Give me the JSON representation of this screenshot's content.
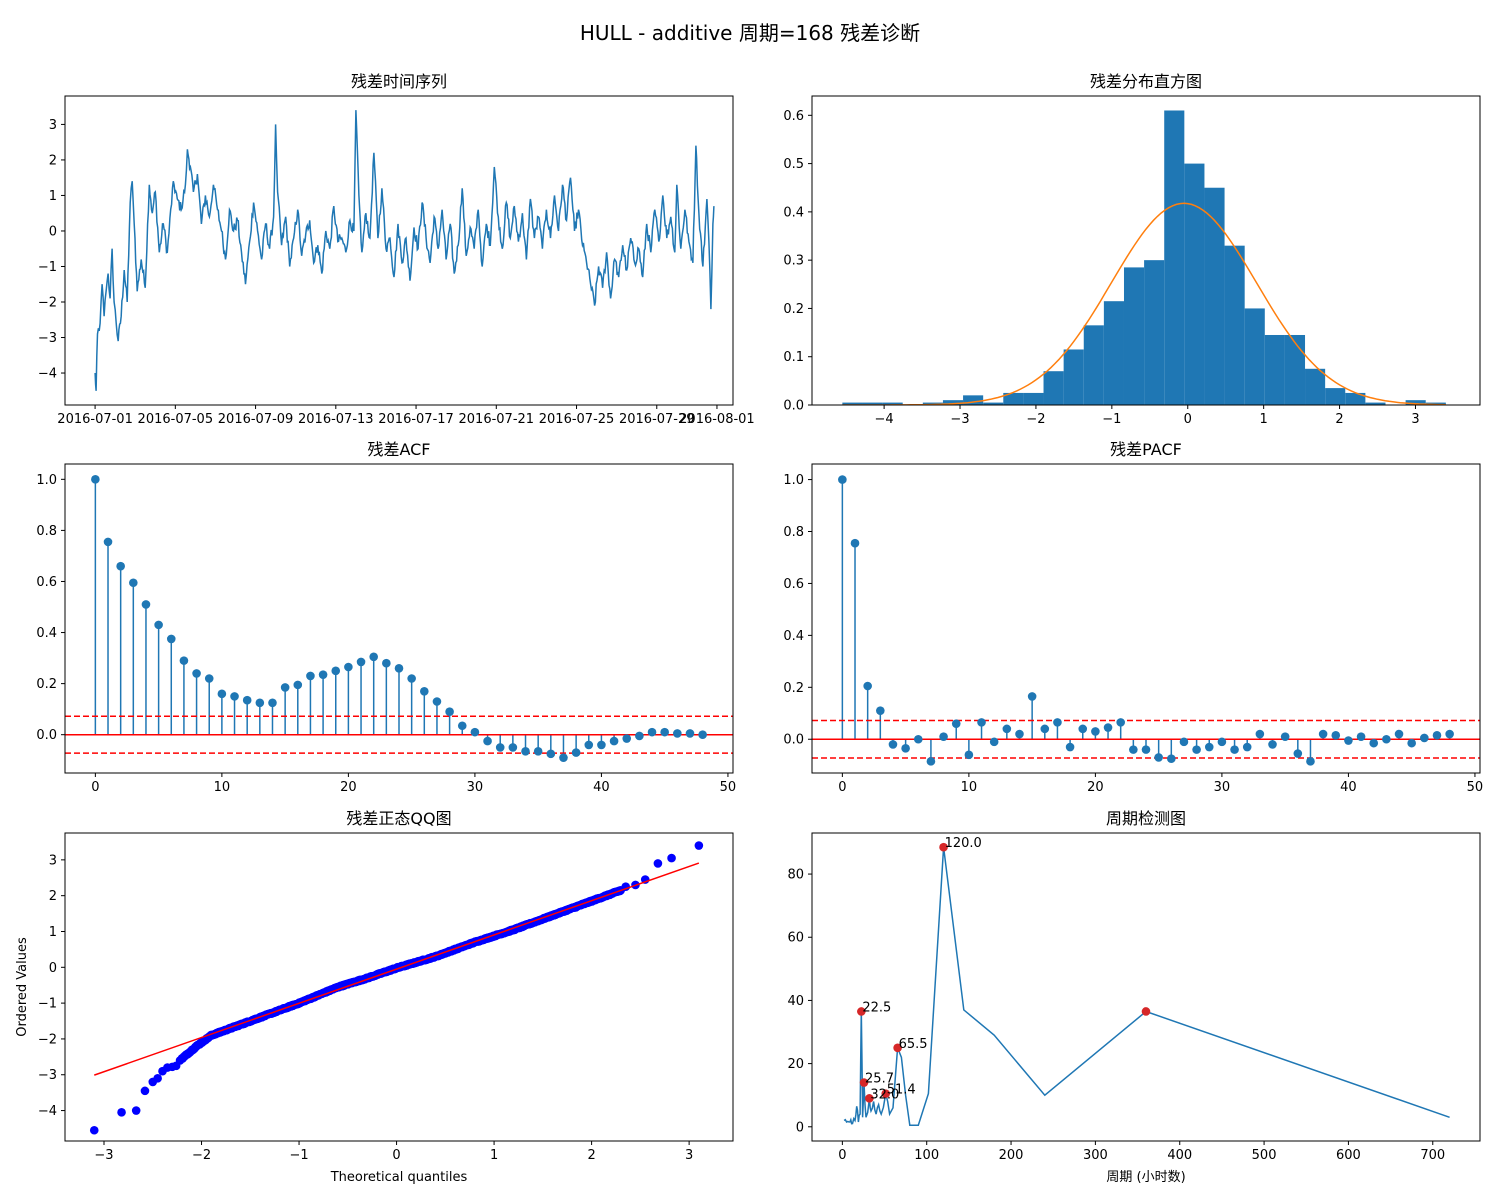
{
  "suptitle": "HULL - additive 周期=168 残差诊断",
  "colors": {
    "blue": "#1f77b4",
    "orange": "#ff7f0e",
    "red": "#ff0000",
    "qq_blue": "#0000ff",
    "peak_red": "#d62728"
  },
  "chart_data": [
    {
      "id": "resid_ts",
      "type": "line",
      "title": "残差时间序列",
      "xlabel": "",
      "ylabel": "",
      "xticks": [
        "2016-07-01",
        "2016-07-05",
        "2016-07-09",
        "2016-07-13",
        "2016-07-17",
        "2016-07-21",
        "2016-07-25",
        "2016-07-29",
        "2016-08-01"
      ],
      "yticks": [
        "−4",
        "−3",
        "−2",
        "−1",
        "0",
        "1",
        "2",
        "3"
      ],
      "xlim_days": [
        -1.5,
        31.8
      ],
      "ylim": [
        -4.9,
        3.8
      ],
      "x_start": "2016-07-01",
      "x_end": "2016-07-31",
      "anchors": [
        [
          0,
          -4.0
        ],
        [
          0.05,
          -4.5
        ],
        [
          0.12,
          -2.9
        ],
        [
          0.25,
          -2.6
        ],
        [
          0.35,
          -1.5
        ],
        [
          0.45,
          -2.4
        ],
        [
          0.55,
          -1.7
        ],
        [
          0.65,
          -1.2
        ],
        [
          0.75,
          -1.9
        ],
        [
          0.85,
          -0.5
        ],
        [
          0.95,
          -2.0
        ],
        [
          1.05,
          -2.6
        ],
        [
          1.15,
          -3.1
        ],
        [
          1.3,
          -2.4
        ],
        [
          1.45,
          -1.1
        ],
        [
          1.6,
          -2.0
        ],
        [
          1.75,
          0.8
        ],
        [
          1.85,
          1.4
        ],
        [
          1.95,
          0.2
        ],
        [
          2.1,
          -1.7
        ],
        [
          2.3,
          -0.8
        ],
        [
          2.5,
          -1.6
        ],
        [
          2.7,
          1.3
        ],
        [
          2.85,
          0.5
        ],
        [
          3.0,
          1.1
        ],
        [
          3.2,
          -0.6
        ],
        [
          3.4,
          0.2
        ],
        [
          3.6,
          -0.6
        ],
        [
          3.9,
          1.4
        ],
        [
          4.1,
          0.9
        ],
        [
          4.3,
          0.6
        ],
        [
          4.5,
          1.3
        ],
        [
          4.6,
          2.3
        ],
        [
          4.75,
          1.8
        ],
        [
          4.9,
          1.1
        ],
        [
          5.1,
          1.6
        ],
        [
          5.3,
          0.2
        ],
        [
          5.5,
          1.0
        ],
        [
          5.7,
          0.4
        ],
        [
          5.9,
          1.3
        ],
        [
          6.1,
          0.6
        ],
        [
          6.3,
          0.0
        ],
        [
          6.5,
          -0.8
        ],
        [
          6.7,
          0.6
        ],
        [
          6.9,
          0.0
        ],
        [
          7.1,
          0.3
        ],
        [
          7.3,
          -0.6
        ],
        [
          7.5,
          -1.5
        ],
        [
          7.7,
          -0.3
        ],
        [
          7.9,
          0.8
        ],
        [
          8.1,
          0.0
        ],
        [
          8.3,
          -0.8
        ],
        [
          8.5,
          0.2
        ],
        [
          8.7,
          -0.5
        ],
        [
          8.9,
          0.4
        ],
        [
          9.0,
          3.0
        ],
        [
          9.1,
          1.1
        ],
        [
          9.3,
          -0.4
        ],
        [
          9.5,
          0.4
        ],
        [
          9.7,
          -1.0
        ],
        [
          9.9,
          -0.2
        ],
        [
          10.1,
          0.6
        ],
        [
          10.3,
          -0.7
        ],
        [
          10.5,
          -0.1
        ],
        [
          10.7,
          0.3
        ],
        [
          10.9,
          -0.9
        ],
        [
          11.1,
          -0.4
        ],
        [
          11.3,
          -1.2
        ],
        [
          11.5,
          0.0
        ],
        [
          11.7,
          -0.5
        ],
        [
          11.9,
          0.7
        ],
        [
          12.1,
          -0.3
        ],
        [
          12.3,
          -0.2
        ],
        [
          12.5,
          -0.6
        ],
        [
          12.7,
          0.3
        ],
        [
          12.9,
          0.0
        ],
        [
          13.0,
          3.4
        ],
        [
          13.15,
          1.0
        ],
        [
          13.3,
          -0.6
        ],
        [
          13.5,
          0.5
        ],
        [
          13.7,
          -0.2
        ],
        [
          13.9,
          2.2
        ],
        [
          14.1,
          -0.2
        ],
        [
          14.3,
          1.2
        ],
        [
          14.5,
          -0.5
        ],
        [
          14.7,
          -0.2
        ],
        [
          14.9,
          -1.3
        ],
        [
          15.1,
          0.2
        ],
        [
          15.3,
          -0.9
        ],
        [
          15.5,
          -0.2
        ],
        [
          15.7,
          -1.4
        ],
        [
          15.9,
          0.1
        ],
        [
          16.1,
          -0.5
        ],
        [
          16.3,
          0.8
        ],
        [
          16.5,
          -0.2
        ],
        [
          16.7,
          -0.9
        ],
        [
          16.9,
          0.4
        ],
        [
          17.1,
          -0.5
        ],
        [
          17.3,
          0.6
        ],
        [
          17.5,
          -0.8
        ],
        [
          17.7,
          0.2
        ],
        [
          17.9,
          -1.2
        ],
        [
          18.1,
          -0.4
        ],
        [
          18.3,
          1.2
        ],
        [
          18.5,
          -0.7
        ],
        [
          18.7,
          0.1
        ],
        [
          18.9,
          -0.5
        ],
        [
          19.1,
          0.6
        ],
        [
          19.3,
          -1.0
        ],
        [
          19.5,
          0.2
        ],
        [
          19.7,
          -0.4
        ],
        [
          19.9,
          1.8
        ],
        [
          20.1,
          0.4
        ],
        [
          20.3,
          -0.5
        ],
        [
          20.5,
          0.8
        ],
        [
          20.7,
          -0.2
        ],
        [
          20.9,
          0.7
        ],
        [
          21.1,
          -0.3
        ],
        [
          21.3,
          0.5
        ],
        [
          21.5,
          -0.8
        ],
        [
          21.7,
          0.9
        ],
        [
          21.9,
          -0.2
        ],
        [
          22.1,
          0.4
        ],
        [
          22.3,
          -0.5
        ],
        [
          22.5,
          0.6
        ],
        [
          22.7,
          -0.2
        ],
        [
          22.9,
          1.0
        ],
        [
          23.1,
          0.0
        ],
        [
          23.3,
          1.3
        ],
        [
          23.5,
          0.3
        ],
        [
          23.7,
          1.5
        ],
        [
          23.9,
          0.0
        ],
        [
          24.1,
          0.6
        ],
        [
          24.3,
          -0.4
        ],
        [
          24.5,
          -0.9
        ],
        [
          24.7,
          -1.5
        ],
        [
          24.9,
          -2.1
        ],
        [
          25.1,
          -1.0
        ],
        [
          25.3,
          -1.6
        ],
        [
          25.5,
          -0.6
        ],
        [
          25.7,
          -1.9
        ],
        [
          25.9,
          -0.8
        ],
        [
          26.1,
          -1.3
        ],
        [
          26.3,
          -0.4
        ],
        [
          26.5,
          -1.1
        ],
        [
          26.7,
          -0.2
        ],
        [
          26.9,
          -0.9
        ],
        [
          27.1,
          -0.5
        ],
        [
          27.3,
          -1.3
        ],
        [
          27.5,
          0.2
        ],
        [
          27.7,
          -0.6
        ],
        [
          27.9,
          0.6
        ],
        [
          28.1,
          -0.3
        ],
        [
          28.3,
          1.0
        ],
        [
          28.5,
          -0.2
        ],
        [
          28.7,
          0.4
        ],
        [
          28.9,
          -0.6
        ],
        [
          29.0,
          1.3
        ],
        [
          29.2,
          -0.5
        ],
        [
          29.4,
          0.6
        ],
        [
          29.6,
          -0.3
        ],
        [
          29.8,
          -0.9
        ],
        [
          29.95,
          2.4
        ],
        [
          30.1,
          0.5
        ],
        [
          30.3,
          -1.0
        ],
        [
          30.5,
          0.9
        ],
        [
          30.6,
          -0.3
        ],
        [
          30.7,
          -2.2
        ],
        [
          30.8,
          0.2
        ],
        [
          30.85,
          0.7
        ]
      ]
    },
    {
      "id": "resid_hist",
      "type": "bar",
      "title": "残差分布直方图",
      "xticks": [
        "−4",
        "−3",
        "−2",
        "−1",
        "0",
        "1",
        "2",
        "3"
      ],
      "yticks": [
        "0.0",
        "0.1",
        "0.2",
        "0.3",
        "0.4",
        "0.5",
        "0.6"
      ],
      "xlim": [
        -4.95,
        3.85
      ],
      "ylim": [
        0,
        0.64
      ],
      "bin_start": -4.55,
      "bin_width": 0.265,
      "values": [
        0.005,
        0.005,
        0.005,
        0,
        0.005,
        0.01,
        0.02,
        0.005,
        0.025,
        0.025,
        0.07,
        0.115,
        0.165,
        0.215,
        0.285,
        0.3,
        0.61,
        0.5,
        0.45,
        0.33,
        0.2,
        0.145,
        0.145,
        0.075,
        0.035,
        0.025,
        0.005,
        0,
        0.01,
        0.005
      ],
      "normal_fit": {
        "mean": -0.05,
        "std": 0.955
      }
    },
    {
      "id": "acf",
      "type": "stem",
      "title": "残差ACF",
      "xticks": [
        "0",
        "10",
        "20",
        "30",
        "40",
        "50"
      ],
      "yticks": [
        "0.0",
        "0.2",
        "0.4",
        "0.6",
        "0.8",
        "1.0"
      ],
      "xlim": [
        -2.4,
        50.4
      ],
      "ylim": [
        -0.15,
        1.06
      ],
      "conf_band": 0.072,
      "values": [
        1.0,
        0.755,
        0.66,
        0.595,
        0.51,
        0.43,
        0.375,
        0.29,
        0.24,
        0.22,
        0.16,
        0.15,
        0.135,
        0.125,
        0.125,
        0.185,
        0.195,
        0.23,
        0.235,
        0.25,
        0.265,
        0.285,
        0.305,
        0.28,
        0.26,
        0.22,
        0.17,
        0.13,
        0.09,
        0.035,
        0.01,
        -0.025,
        -0.05,
        -0.05,
        -0.065,
        -0.065,
        -0.075,
        -0.09,
        -0.07,
        -0.04,
        -0.04,
        -0.025,
        -0.015,
        -0.005,
        0.01,
        0.01,
        0.005,
        0.005,
        0.0
      ]
    },
    {
      "id": "pacf",
      "type": "stem",
      "title": "残差PACF",
      "xticks": [
        "0",
        "10",
        "20",
        "30",
        "40",
        "50"
      ],
      "yticks": [
        "0.0",
        "0.2",
        "0.4",
        "0.6",
        "0.8",
        "1.0"
      ],
      "xlim": [
        -2.4,
        50.4
      ],
      "ylim": [
        -0.13,
        1.06
      ],
      "conf_band": 0.072,
      "values": [
        1.0,
        0.755,
        0.205,
        0.11,
        -0.02,
        -0.035,
        0.0,
        -0.085,
        0.01,
        0.06,
        -0.06,
        0.065,
        -0.01,
        0.04,
        0.02,
        0.165,
        0.04,
        0.065,
        -0.03,
        0.04,
        0.03,
        0.045,
        0.065,
        -0.04,
        -0.04,
        -0.07,
        -0.075,
        -0.01,
        -0.04,
        -0.03,
        -0.01,
        -0.04,
        -0.03,
        0.02,
        -0.02,
        0.01,
        -0.055,
        -0.085,
        0.02,
        0.015,
        -0.005,
        0.01,
        -0.015,
        0.0,
        0.02,
        -0.015,
        0.005,
        0.015,
        0.02
      ]
    },
    {
      "id": "qq",
      "type": "scatter",
      "title": "残差正态QQ图",
      "xlabel": "Theoretical quantiles",
      "ylabel": "Ordered Values",
      "xticks": [
        "−3",
        "−2",
        "−1",
        "0",
        "1",
        "2",
        "3"
      ],
      "yticks": [
        "−4",
        "−3",
        "−2",
        "−1",
        "0",
        "1",
        "2",
        "3"
      ],
      "xlim": [
        -3.4,
        3.45
      ],
      "ylim": [
        -4.85,
        3.75
      ],
      "fit_line": {
        "slope": 0.955,
        "intercept": -0.05,
        "x_range": [
          -3.1,
          3.1
        ]
      },
      "tail_points": [
        [
          -3.1,
          -4.55
        ],
        [
          -2.82,
          -4.05
        ],
        [
          -2.67,
          -4.0
        ],
        [
          -2.58,
          -3.45
        ],
        [
          -2.5,
          -3.2
        ],
        [
          -2.45,
          -3.1
        ],
        [
          -2.4,
          -2.9
        ],
        [
          -2.35,
          -2.8
        ],
        [
          -2.3,
          -2.78
        ],
        [
          -2.26,
          -2.75
        ],
        [
          -2.22,
          -2.6
        ],
        [
          2.35,
          2.25
        ],
        [
          2.45,
          2.3
        ],
        [
          2.55,
          2.45
        ],
        [
          2.68,
          2.9
        ],
        [
          2.82,
          3.05
        ],
        [
          3.1,
          3.4
        ]
      ],
      "body_curve": [
        [
          -2.2,
          -2.55
        ],
        [
          -2.05,
          -2.2
        ],
        [
          -1.9,
          -1.9
        ],
        [
          -1.6,
          -1.6
        ],
        [
          -1.3,
          -1.3
        ],
        [
          -1.0,
          -1.0
        ],
        [
          -0.6,
          -0.55
        ],
        [
          -0.3,
          -0.3
        ],
        [
          0,
          -0.02
        ],
        [
          0.4,
          0.3
        ],
        [
          0.8,
          0.7
        ],
        [
          1.2,
          1.05
        ],
        [
          1.6,
          1.45
        ],
        [
          2.0,
          1.85
        ],
        [
          2.3,
          2.15
        ]
      ]
    },
    {
      "id": "period",
      "type": "line",
      "title": "周期检测图",
      "xlabel": "周期 (小时数)",
      "ylabel": "",
      "xticks": [
        "0",
        "100",
        "200",
        "300",
        "400",
        "500",
        "600",
        "700"
      ],
      "yticks": [
        "0",
        "20",
        "40",
        "60",
        "80"
      ],
      "xlim": [
        -36,
        756
      ],
      "ylim": [
        -4.5,
        93
      ],
      "line": [
        [
          2,
          2
        ],
        [
          5,
          1.5
        ],
        [
          8,
          1.5
        ],
        [
          10,
          2.2
        ],
        [
          12,
          1
        ],
        [
          15,
          2
        ],
        [
          17,
          6.5
        ],
        [
          19,
          1.5
        ],
        [
          21,
          4
        ],
        [
          22.5,
          36.5
        ],
        [
          24,
          3
        ],
        [
          25.7,
          14
        ],
        [
          28,
          3
        ],
        [
          32,
          9
        ],
        [
          34,
          5
        ],
        [
          37,
          8
        ],
        [
          40,
          4
        ],
        [
          43,
          7
        ],
        [
          46,
          4
        ],
        [
          51.4,
          10.5
        ],
        [
          56,
          4
        ],
        [
          60,
          6
        ],
        [
          65.5,
          25
        ],
        [
          70,
          22
        ],
        [
          75,
          10
        ],
        [
          80,
          0.5
        ],
        [
          90,
          0.5
        ],
        [
          102,
          10.5
        ],
        [
          120,
          88.5
        ],
        [
          144,
          37
        ],
        [
          180,
          29
        ],
        [
          240,
          10
        ],
        [
          360,
          36.5
        ],
        [
          720,
          3
        ]
      ],
      "peaks": [
        [
          120,
          88.5
        ],
        [
          22.5,
          36.5
        ],
        [
          65.5,
          25
        ],
        [
          25.7,
          14
        ],
        [
          32,
          9
        ],
        [
          51.4,
          10.5
        ],
        [
          360,
          36.5
        ]
      ],
      "peak_labels": [
        {
          "text": "120.0",
          "x": 120,
          "y": 88.5
        },
        {
          "text": "22.5",
          "x": 22.5,
          "y": 36.5
        },
        {
          "text": "65.5",
          "x": 65.5,
          "y": 25
        },
        {
          "text": "25.7",
          "x": 25.7,
          "y": 14
        },
        {
          "text": "32.0",
          "x": 32,
          "y": 9
        },
        {
          "text": "51.4",
          "x": 51.4,
          "y": 10.5
        }
      ]
    }
  ]
}
